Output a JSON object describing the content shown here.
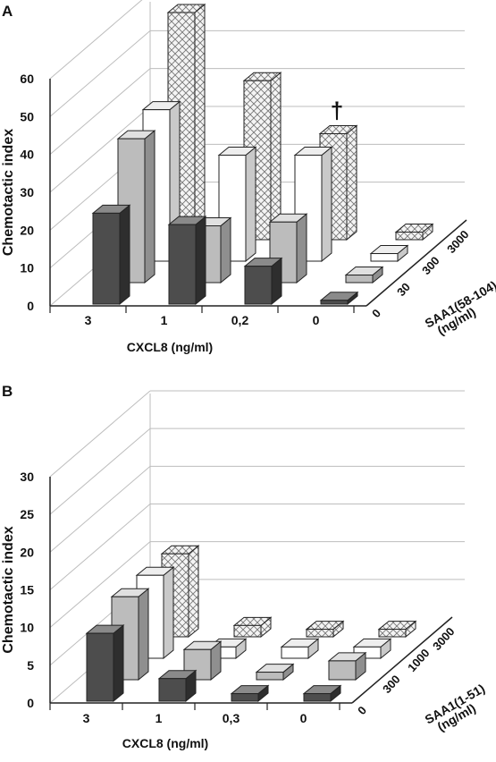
{
  "chart_data": [
    {
      "panel_label": "A",
      "type": "bar",
      "subtype": "3d-bar",
      "ylabel": "Chemotactic index",
      "xlabel": "CXCL8 (ng/ml)",
      "zlabel_lines": [
        "SAA1(58-104)",
        "(ng/ml)"
      ],
      "ylim": [
        0,
        60
      ],
      "yticks": [
        "0",
        "10",
        "20",
        "30",
        "40",
        "50",
        "60"
      ],
      "categories": [
        "3",
        "1",
        "0,2",
        "0"
      ],
      "series": [
        {
          "name": "0",
          "values": [
            24,
            21,
            10,
            1
          ]
        },
        {
          "name": "30",
          "values": [
            38,
            15,
            16,
            2
          ]
        },
        {
          "name": "300",
          "values": [
            40,
            28,
            28,
            2
          ]
        },
        {
          "name": "3000",
          "values": [
            60,
            42,
            28,
            2
          ]
        }
      ],
      "annotations": [
        {
          "text": "†",
          "category": "3",
          "series": "3000"
        },
        {
          "text": "†",
          "category": "0,2",
          "series": "3000"
        }
      ]
    },
    {
      "panel_label": "B",
      "type": "bar",
      "subtype": "3d-bar",
      "ylabel": "Chemotactic index",
      "xlabel": "CXCL8 (ng/ml)",
      "zlabel_lines": [
        "SAA1(1-51)",
        "(ng/ml)"
      ],
      "ylim": [
        0,
        30
      ],
      "yticks": [
        "0",
        "5",
        "10",
        "15",
        "20",
        "25",
        "30"
      ],
      "categories": [
        "3",
        "1",
        "0,3",
        "0"
      ],
      "series": [
        {
          "name": "0",
          "values": [
            9,
            3,
            1,
            1
          ]
        },
        {
          "name": "300",
          "values": [
            11,
            4,
            1,
            2.5
          ]
        },
        {
          "name": "1000",
          "values": [
            11,
            1.5,
            1.5,
            1.5
          ]
        },
        {
          "name": "3000",
          "values": [
            11,
            1.5,
            1,
            1
          ]
        }
      ],
      "annotations": []
    }
  ]
}
